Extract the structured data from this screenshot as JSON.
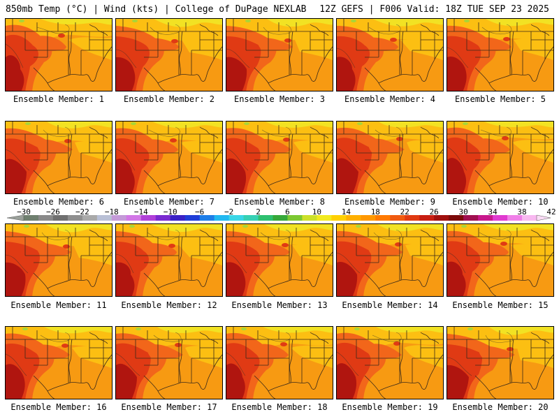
{
  "header": {
    "left": "850mb Temp (°C) | Wind (kts) | College of DuPage NEXLAB",
    "right": "12Z GEFS | F006 Valid: 18Z TUE SEP 23 2025"
  },
  "members": [
    "Ensemble Member: 1",
    "Ensemble Member: 2",
    "Ensemble Member: 3",
    "Ensemble Member: 4",
    "Ensemble Member: 5",
    "Ensemble Member: 6",
    "Ensemble Member: 7",
    "Ensemble Member: 8",
    "Ensemble Member: 9",
    "Ensemble Member: 10",
    "Ensemble Member: 11",
    "Ensemble Member: 12",
    "Ensemble Member: 13",
    "Ensemble Member: 14",
    "Ensemble Member: 15",
    "Ensemble Member: 16",
    "Ensemble Member: 17",
    "Ensemble Member: 18",
    "Ensemble Member: 19",
    "Ensemble Member: 20"
  ],
  "colorbar": {
    "tick_labels": [
      "−30",
      "−26",
      "−22",
      "−18",
      "−14",
      "−10",
      "−6",
      "−2",
      "2",
      "6",
      "10",
      "14",
      "18",
      "22",
      "26",
      "30",
      "34",
      "38",
      "42"
    ],
    "colors": [
      "#6f7f6f",
      "#8a8a8a",
      "#707070",
      "#8f8f8f",
      "#a9a9a9",
      "#b9c0d6",
      "#c49ad8",
      "#d277e6",
      "#b040d8",
      "#7a2ad0",
      "#3b22c6",
      "#1f3ed8",
      "#1e7ee8",
      "#22b8f0",
      "#3ad6e6",
      "#36d0b4",
      "#2ec070",
      "#36a83a",
      "#7cc832",
      "#cce02a",
      "#f2ea20",
      "#ffd000",
      "#ffb000",
      "#ff9800",
      "#ff7a00",
      "#f05a10",
      "#e03a12",
      "#c81e12",
      "#a0100e",
      "#7c0a0a",
      "#a01050",
      "#c8188c",
      "#e03ad0",
      "#f080e8",
      "#f8b8f0"
    ]
  },
  "map_colors": {
    "deep_red": "#b0150f",
    "red": "#e03a14",
    "orange_red": "#f2661a",
    "orange": "#f79a12",
    "yellow_orange": "#fcbf12",
    "yellow": "#f2e223",
    "green": "#a8d638"
  }
}
